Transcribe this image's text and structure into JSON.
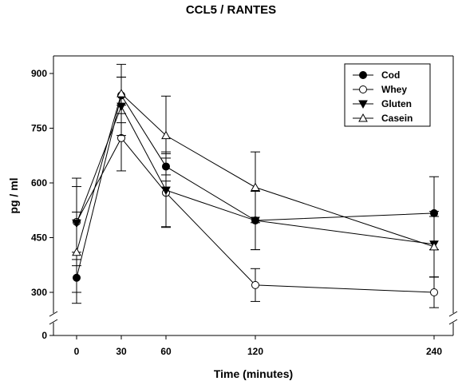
{
  "chart_data": {
    "type": "line",
    "title": "CCL5 / RANTES",
    "xlabel": "Time (minutes)",
    "ylabel": "pg / ml",
    "x": [
      0,
      30,
      60,
      120,
      240
    ],
    "x_ticks": [
      "0",
      "30",
      "60",
      "120",
      "240"
    ],
    "y_ticks": [
      "0",
      "300",
      "450",
      "600",
      "750",
      "900"
    ],
    "ylim": [
      0,
      960
    ],
    "y_axis_break": [
      0,
      300
    ],
    "legend_position": "top-right",
    "grid": false,
    "series": [
      {
        "name": "Cod",
        "marker": "filled-circle",
        "values": [
          340,
          840,
          645,
          497,
          517
        ],
        "error": [
          70,
          50,
          40,
          80,
          100
        ]
      },
      {
        "name": "Whey",
        "marker": "open-circle",
        "values": [
          493,
          723,
          573,
          320,
          300
        ],
        "error": [
          120,
          90,
          95,
          45,
          42
        ]
      },
      {
        "name": "Gluten",
        "marker": "filled-triangle-down",
        "values": [
          490,
          810,
          580,
          497,
          432
        ],
        "error": [
          100,
          80,
          100,
          80,
          90
        ]
      },
      {
        "name": "Casein",
        "marker": "open-triangle-up",
        "values": [
          410,
          845,
          730,
          588,
          425
        ],
        "error": [
          110,
          80,
          108,
          97,
          83
        ]
      }
    ]
  }
}
